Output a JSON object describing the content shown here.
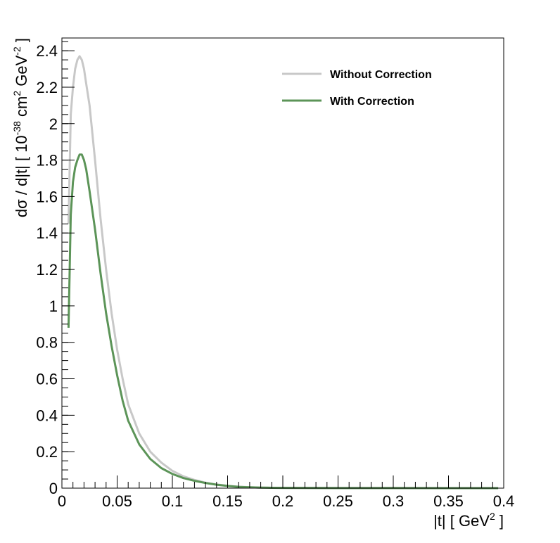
{
  "chart_data": {
    "type": "line",
    "title": "",
    "xlabel": {
      "main": "|t|  [ GeV",
      "sup": "2",
      "tail": " ]"
    },
    "ylabel": {
      "p1": "dσ / d|t|  [ 10",
      "s1": "-38",
      "p2": " cm",
      "s2": "2",
      "p3": " GeV",
      "s3": "-2",
      "p4": " ]"
    },
    "xlim": [
      0,
      0.4
    ],
    "ylim": [
      0,
      2.47
    ],
    "x_ticks": [
      0,
      0.05,
      0.1,
      0.15,
      0.2,
      0.25,
      0.3,
      0.35,
      0.4
    ],
    "x_tick_labels": [
      "0",
      "0.05",
      "0.1",
      "0.15",
      "0.2",
      "0.25",
      "0.3",
      "0.35",
      "0.4"
    ],
    "y_ticks": [
      0,
      0.2,
      0.4,
      0.6,
      0.8,
      1.0,
      1.2,
      1.4,
      1.6,
      1.8,
      2.0,
      2.2,
      2.4
    ],
    "y_tick_labels": [
      "0",
      "0.2",
      "0.4",
      "0.6",
      "0.8",
      "1",
      "1.2",
      "1.4",
      "1.6",
      "1.8",
      "2",
      "2.2",
      "2.4"
    ],
    "legend_position": "top-right",
    "grid": false,
    "series": [
      {
        "name": "Without Correction",
        "color": "#c8c8c8",
        "x": [
          0.006,
          0.008,
          0.01,
          0.012,
          0.014,
          0.016,
          0.018,
          0.02,
          0.022,
          0.025,
          0.03,
          0.035,
          0.04,
          0.045,
          0.05,
          0.055,
          0.06,
          0.07,
          0.08,
          0.09,
          0.1,
          0.11,
          0.12,
          0.13,
          0.14,
          0.15,
          0.16,
          0.17,
          0.18,
          0.19,
          0.2,
          0.25,
          0.3,
          0.35,
          0.395
        ],
        "y": [
          1.45,
          2.05,
          2.2,
          2.3,
          2.35,
          2.37,
          2.35,
          2.3,
          2.22,
          2.1,
          1.8,
          1.48,
          1.2,
          0.96,
          0.76,
          0.6,
          0.46,
          0.3,
          0.2,
          0.14,
          0.095,
          0.065,
          0.045,
          0.03,
          0.02,
          0.013,
          0.008,
          0.005,
          0.003,
          0.002,
          0.0015,
          0.0005,
          0.0002,
          0.0001,
          0.0
        ]
      },
      {
        "name": "With Correction",
        "color": "#5c9458",
        "x": [
          0.006,
          0.008,
          0.01,
          0.012,
          0.014,
          0.016,
          0.018,
          0.02,
          0.022,
          0.025,
          0.03,
          0.035,
          0.04,
          0.045,
          0.05,
          0.055,
          0.06,
          0.07,
          0.08,
          0.09,
          0.1,
          0.11,
          0.12,
          0.13,
          0.14,
          0.15,
          0.16,
          0.17,
          0.18,
          0.19,
          0.2,
          0.25,
          0.3,
          0.35,
          0.395
        ],
        "y": [
          0.88,
          1.5,
          1.68,
          1.76,
          1.8,
          1.83,
          1.83,
          1.8,
          1.75,
          1.63,
          1.42,
          1.18,
          0.96,
          0.78,
          0.62,
          0.48,
          0.37,
          0.24,
          0.16,
          0.11,
          0.078,
          0.055,
          0.04,
          0.028,
          0.019,
          0.012,
          0.007,
          0.0045,
          0.003,
          0.002,
          0.0015,
          0.0005,
          0.0002,
          0.0001,
          0.0
        ]
      }
    ]
  }
}
